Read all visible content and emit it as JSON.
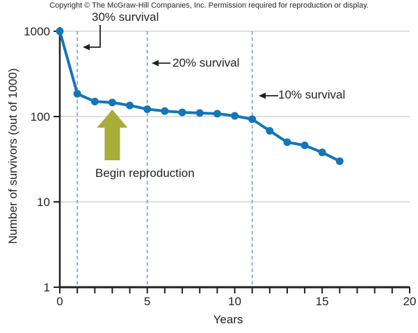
{
  "copyright": "Copyright © The McGraw-Hill Companies, Inc. Permission required for reproduction or display.",
  "chart_data": {
    "type": "line",
    "title": "",
    "xlabel": "Years",
    "ylabel": "Number of survivors (out of 1000)",
    "yscale": "log",
    "xlim": [
      0,
      20
    ],
    "ylim": [
      1,
      1000
    ],
    "grid": "horizontal gridlines at y ticks",
    "legend": "none",
    "x": [
      0,
      1,
      2,
      3,
      4,
      5,
      6,
      7,
      8,
      9,
      10,
      11,
      12,
      13,
      14,
      15,
      16
    ],
    "y": [
      1000,
      185,
      150,
      146,
      135,
      122,
      116,
      112,
      110,
      108,
      102,
      93,
      68,
      50,
      46,
      38,
      30
    ],
    "xticks_minor": [
      0,
      1,
      2,
      3,
      4,
      5,
      6,
      7,
      8,
      9,
      10,
      11,
      12,
      13,
      14,
      15,
      16,
      17,
      18,
      19,
      20
    ],
    "xtick_labels": [
      "0",
      "5",
      "10",
      "15",
      "20"
    ],
    "xtick_label_positions": [
      0,
      5,
      10,
      15,
      20
    ],
    "ytick_labels": [
      "1000",
      "100",
      "10",
      "1"
    ],
    "ytick_values": [
      1000,
      100,
      10,
      1
    ],
    "line_color": "#1476b8",
    "marker_color": "#1476b8",
    "axis_color": "#231f20",
    "gridline_color": "#c9c9c9",
    "annotations": {
      "dashed_line_color": "#8ab1d9",
      "survival_lines": [
        {
          "x": 1,
          "label": "30% survival"
        },
        {
          "x": 5,
          "label": "20% survival"
        },
        {
          "x": 11,
          "label": "10% survival"
        }
      ],
      "begin_reproduction": {
        "label": "Begin reproduction",
        "arrow_color": "#a7ad36",
        "points_at_year": 3
      }
    }
  }
}
